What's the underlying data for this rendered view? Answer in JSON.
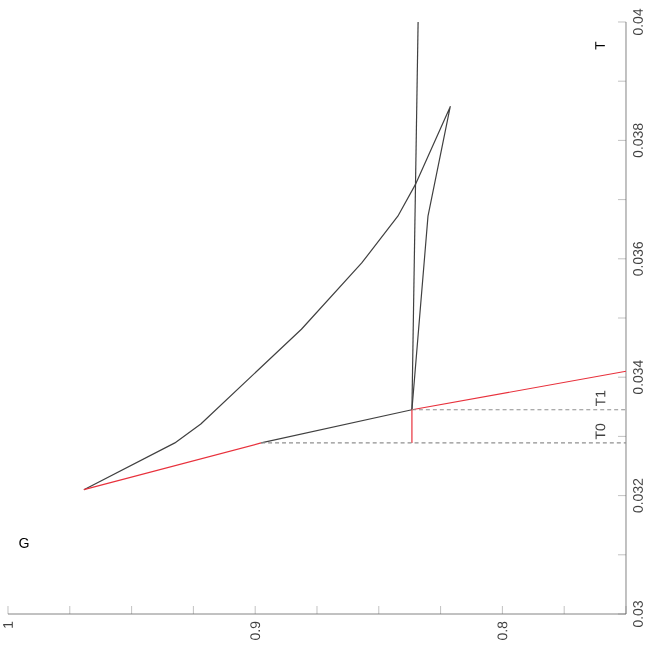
{
  "chart_data": {
    "type": "line",
    "xlabel": "G",
    "ylabel": "T",
    "xlim": [
      1,
      0.75
    ],
    "ylim": [
      0.03,
      0.04
    ],
    "xticks": [
      1,
      {
        "value": 0.975,
        "label": null
      },
      {
        "value": 0.95,
        "label": null
      },
      {
        "value": 0.925,
        "label": null
      },
      0.9,
      {
        "value": 0.875,
        "label": null
      },
      {
        "value": 0.85,
        "label": null
      },
      {
        "value": 0.825,
        "label": null
      },
      0.8,
      {
        "value": 0.775,
        "label": null
      },
      {
        "value": 0.75,
        "label": null
      }
    ],
    "yticks": [
      0.03,
      {
        "value": 0.031,
        "label": null
      },
      0.032,
      {
        "value": 0.033,
        "label": null
      },
      0.034,
      {
        "value": 0.035,
        "label": null
      },
      0.036,
      {
        "value": 0.037,
        "label": null
      },
      0.038,
      {
        "value": 0.039,
        "label": null
      },
      0.04
    ],
    "series": [
      {
        "color": "#404040",
        "line_style": "solid",
        "x": [
          0.8976,
          0.8366,
          0.8301,
          0.8211,
          0.835,
          0.8423,
          0.8569,
          0.8813,
          0.922,
          0.9325,
          0.9693
        ],
        "values": [
          0.03289,
          0.03345,
          0.03672,
          0.03857,
          0.03727,
          0.03672,
          0.03593,
          0.03481,
          0.03321,
          0.03289,
          0.0321
        ]
      },
      {
        "color": "#404040",
        "line_style": "solid",
        "x": [
          0.8366,
          0.8341
        ],
        "values": [
          0.03345,
          0.04
        ]
      },
      {
        "color": "#e8313c",
        "line_style": "solid",
        "x": [
          0.9693,
          0.8976,
          null,
          0.8366,
          0.8366,
          0.75
        ],
        "values": [
          0.0321,
          0.03289,
          null,
          0.03289,
          0.03345,
          0.0341
        ]
      },
      {
        "color": "#909090",
        "line_style": "dashed",
        "x": [
          0.8976,
          0.75
        ],
        "values": [
          0.03289,
          0.03289
        ]
      },
      {
        "color": "#909090",
        "line_style": "dashed",
        "x": [
          0.8366,
          0.75
        ],
        "values": [
          0.03345,
          0.03345
        ]
      }
    ],
    "annotations": [
      {
        "text": "T0",
        "x": 0.757,
        "y": 0.03289
      },
      {
        "text": "T1",
        "x": 0.757,
        "y": 0.03345
      }
    ]
  }
}
